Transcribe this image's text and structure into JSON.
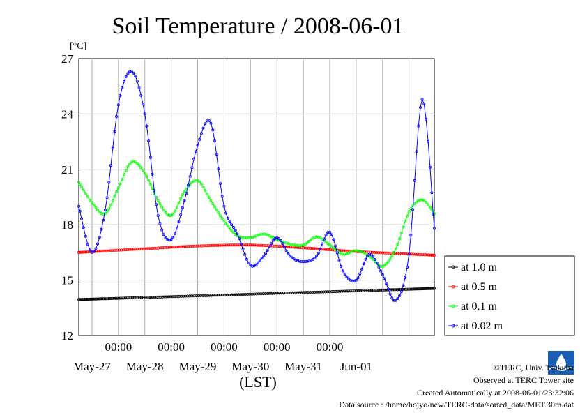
{
  "chart_data": {
    "type": "line",
    "title": "Soil Temperature / 2008-06-01",
    "y_unit_label": "[°C]",
    "xlabel": "(LST)",
    "ylim": [
      12,
      27
    ],
    "yticks": [
      "12",
      "15",
      "18",
      "21",
      "24",
      "27"
    ],
    "x_range_days": [
      "2008-05-26 06:00",
      "2008-06-01 23:30"
    ],
    "time_labels": [
      "00:00",
      "00:00",
      "00:00",
      "00:00",
      "00:00"
    ],
    "date_labels": [
      "May-27",
      "May-28",
      "May-29",
      "May-30",
      "May-31",
      "Jun-01"
    ],
    "grid": true,
    "legend_position": "right",
    "series": [
      {
        "name": "at 1.0 m",
        "color": "#000000",
        "x": [
          "2008-05-26 06:00",
          "2008-06-01 23:30"
        ],
        "values": [
          13.95,
          14.55
        ]
      },
      {
        "name": "at 0.5 m",
        "color": "#ff0000",
        "x": [
          "2008-05-26 06:00",
          "2008-05-27 12:00",
          "2008-05-28 12:00",
          "2008-05-29 12:00",
          "2008-05-30 12:00",
          "2008-05-31 12:00",
          "2008-06-01 23:30"
        ],
        "values": [
          16.5,
          16.7,
          16.85,
          16.9,
          16.75,
          16.55,
          16.35
        ]
      },
      {
        "name": "at 0.1 m",
        "color": "#00ff00",
        "x": [
          "2008-05-26 06:00",
          "2008-05-26 12:00",
          "2008-05-26 18:00",
          "2008-05-27 00:00",
          "2008-05-27 06:00",
          "2008-05-27 12:00",
          "2008-05-27 18:00",
          "2008-05-28 00:00",
          "2008-05-28 06:00",
          "2008-05-28 12:00",
          "2008-05-28 18:00",
          "2008-05-29 00:00",
          "2008-05-29 06:00",
          "2008-05-29 12:00",
          "2008-05-29 18:00",
          "2008-05-30 00:00",
          "2008-05-30 06:00",
          "2008-05-30 12:00",
          "2008-05-30 18:00",
          "2008-05-31 00:00",
          "2008-05-31 06:00",
          "2008-05-31 12:00",
          "2008-05-31 18:00",
          "2008-06-01 00:00",
          "2008-06-01 06:00",
          "2008-06-01 12:00",
          "2008-06-01 18:00",
          "2008-06-01 23:30"
        ],
        "values": [
          20.3,
          19.2,
          18.6,
          20.0,
          21.4,
          20.8,
          19.3,
          18.5,
          19.8,
          20.4,
          19.3,
          18.2,
          17.4,
          17.3,
          17.5,
          17.2,
          16.95,
          16.9,
          17.35,
          16.9,
          16.4,
          16.6,
          16.3,
          15.75,
          16.7,
          18.7,
          19.35,
          18.6
        ]
      },
      {
        "name": "at 0.02 m",
        "color": "#0000ff",
        "x": [
          "2008-05-26 06:00",
          "2008-05-26 12:00",
          "2008-05-26 18:00",
          "2008-05-27 00:00",
          "2008-05-27 06:00",
          "2008-05-27 12:00",
          "2008-05-27 18:00",
          "2008-05-28 00:00",
          "2008-05-28 06:00",
          "2008-05-28 12:00",
          "2008-05-28 18:00",
          "2008-05-29 00:00",
          "2008-05-29 06:00",
          "2008-05-29 12:00",
          "2008-05-29 18:00",
          "2008-05-30 00:00",
          "2008-05-30 06:00",
          "2008-05-30 12:00",
          "2008-05-30 18:00",
          "2008-05-31 00:00",
          "2008-05-31 06:00",
          "2008-05-31 12:00",
          "2008-05-31 18:00",
          "2008-06-01 00:00",
          "2008-06-01 06:00",
          "2008-06-01 12:00",
          "2008-06-01 18:00",
          "2008-06-01 23:30"
        ],
        "values": [
          19.0,
          16.5,
          18.8,
          24.5,
          26.3,
          24.0,
          18.5,
          17.2,
          19.3,
          22.3,
          23.5,
          19.0,
          17.5,
          15.8,
          16.3,
          17.3,
          16.3,
          16.0,
          16.3,
          17.6,
          15.5,
          15.0,
          16.4,
          15.3,
          13.9,
          16.4,
          24.8,
          17.8
        ]
      }
    ]
  },
  "credits": {
    "copyright": "©TERC, Univ. Tsukuba",
    "observed": "Observed at TERC Tower site",
    "created": "Created Automatically at 2008-06-01/23:32:06",
    "source": "Data source : /home/hojyo/new/TERC-data/sorted_data/MET.30m.dat",
    "logo_text": "TERC"
  }
}
